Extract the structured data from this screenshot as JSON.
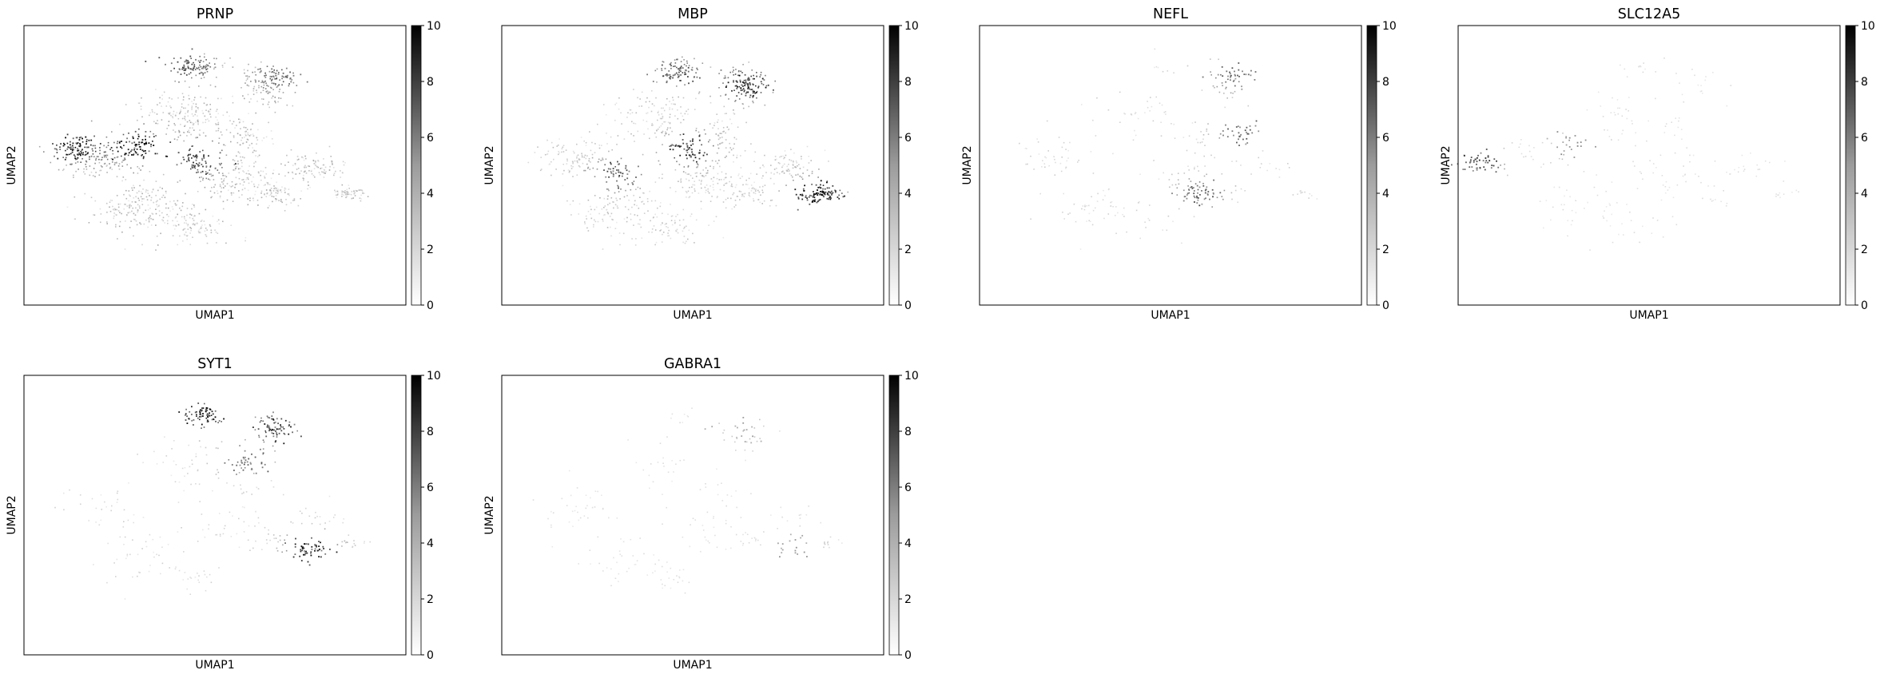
{
  "colormap": "Greys",
  "point_color": "#000000",
  "frame_color": "#000000",
  "chart_data": [
    {
      "type": "scatter",
      "title": "PRNP",
      "xlabel": "UMAP1",
      "ylabel": "UMAP2",
      "colorbar": {
        "min": 0,
        "max": 10,
        "ticks": [
          "0",
          "2",
          "4",
          "6",
          "8",
          "10"
        ]
      },
      "expression_level": "high-broad",
      "hotspots": [
        {
          "x": 0.13,
          "y": 0.57,
          "level": 0.9
        },
        {
          "x": 0.3,
          "y": 0.57,
          "level": 0.95
        },
        {
          "x": 0.45,
          "y": 0.52,
          "level": 0.7
        },
        {
          "x": 0.42,
          "y": 0.86,
          "level": 0.6
        },
        {
          "x": 0.67,
          "y": 0.82,
          "level": 0.5
        }
      ]
    },
    {
      "type": "scatter",
      "title": "MBP",
      "xlabel": "UMAP1",
      "ylabel": "UMAP2",
      "colorbar": {
        "min": 0,
        "max": 10,
        "ticks": [
          "0",
          "2",
          "4",
          "6",
          "8",
          "10"
        ]
      },
      "expression_level": "moderate",
      "hotspots": [
        {
          "x": 0.82,
          "y": 0.4,
          "level": 0.95
        },
        {
          "x": 0.64,
          "y": 0.79,
          "level": 0.85
        },
        {
          "x": 0.49,
          "y": 0.56,
          "level": 0.8
        },
        {
          "x": 0.3,
          "y": 0.47,
          "level": 0.6
        },
        {
          "x": 0.46,
          "y": 0.83,
          "level": 0.6
        }
      ]
    },
    {
      "type": "scatter",
      "title": "NEFL",
      "xlabel": "UMAP1",
      "ylabel": "UMAP2",
      "colorbar": {
        "min": 0,
        "max": 10,
        "ticks": [
          "0",
          "2",
          "4",
          "6",
          "8",
          "10"
        ]
      },
      "expression_level": "low",
      "hotspots": [
        {
          "x": 0.66,
          "y": 0.82,
          "level": 0.5
        },
        {
          "x": 0.58,
          "y": 0.4,
          "level": 0.55
        },
        {
          "x": 0.68,
          "y": 0.62,
          "level": 0.5
        }
      ]
    },
    {
      "type": "scatter",
      "title": "SLC12A5",
      "xlabel": "UMAP1",
      "ylabel": "UMAP2",
      "colorbar": {
        "min": 0,
        "max": 10,
        "ticks": [
          "0",
          "2",
          "4",
          "6",
          "8",
          "10"
        ]
      },
      "expression_level": "very-low",
      "hotspots": [
        {
          "x": 0.05,
          "y": 0.51,
          "level": 0.7
        },
        {
          "x": 0.3,
          "y": 0.57,
          "level": 0.3
        }
      ]
    },
    {
      "type": "scatter",
      "title": "SYT1",
      "xlabel": "UMAP1",
      "ylabel": "UMAP2",
      "colorbar": {
        "min": 0,
        "max": 10,
        "ticks": [
          "0",
          "2",
          "4",
          "6",
          "8",
          "10"
        ]
      },
      "expression_level": "low",
      "hotspots": [
        {
          "x": 0.47,
          "y": 0.86,
          "level": 0.9
        },
        {
          "x": 0.66,
          "y": 0.82,
          "level": 0.8
        },
        {
          "x": 0.75,
          "y": 0.38,
          "level": 0.8
        },
        {
          "x": 0.58,
          "y": 0.7,
          "level": 0.5
        }
      ]
    },
    {
      "type": "scatter",
      "title": "GABRA1",
      "xlabel": "UMAP1",
      "ylabel": "UMAP2",
      "colorbar": {
        "min": 0,
        "max": 10,
        "ticks": [
          "0",
          "2",
          "4",
          "6",
          "8",
          "10"
        ]
      },
      "expression_level": "very-low",
      "hotspots": [
        {
          "x": 0.63,
          "y": 0.81,
          "level": 0.2
        },
        {
          "x": 0.77,
          "y": 0.39,
          "level": 0.25
        }
      ]
    }
  ]
}
